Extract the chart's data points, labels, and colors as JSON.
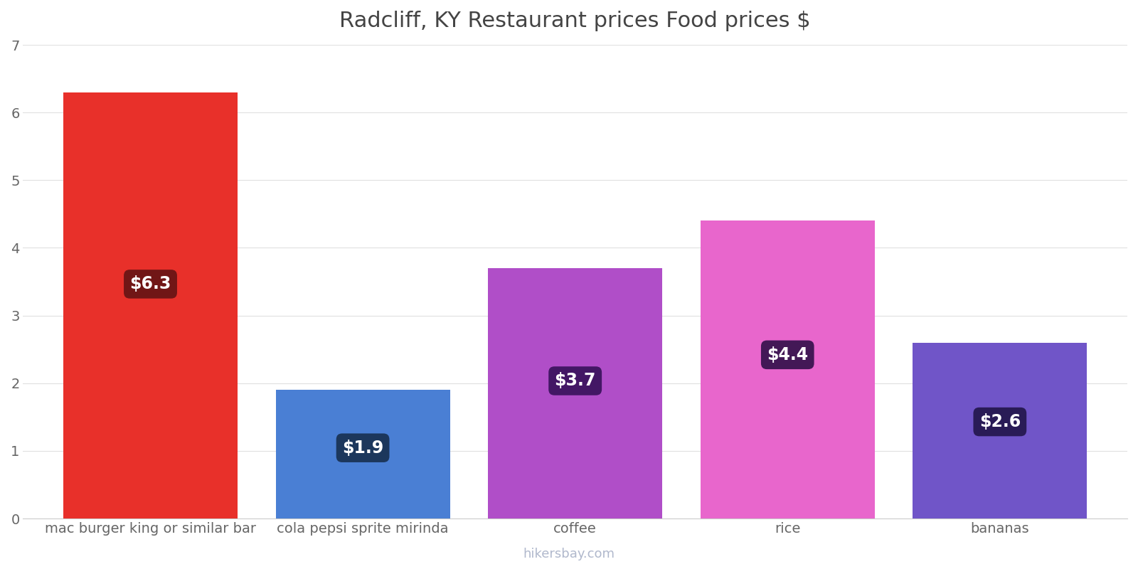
{
  "title": "Radcliff, KY Restaurant prices Food prices $",
  "categories": [
    "mac burger king or similar bar",
    "cola pepsi sprite mirinda",
    "coffee",
    "rice",
    "bananas"
  ],
  "values": [
    6.3,
    1.9,
    3.7,
    4.4,
    2.6
  ],
  "bar_colors": [
    "#e8302a",
    "#4a7fd4",
    "#b04ec8",
    "#e866cc",
    "#7055c8"
  ],
  "label_bg_colors": [
    "#6b1515",
    "#1a3356",
    "#3d1460",
    "#3a1450",
    "#251850"
  ],
  "labels": [
    "$6.3",
    "$1.9",
    "$3.7",
    "$4.4",
    "$2.6"
  ],
  "ylim": [
    0,
    7
  ],
  "yticks": [
    0,
    1,
    2,
    3,
    4,
    5,
    6,
    7
  ],
  "background_color": "#ffffff",
  "grid_color": "#e0e0e0",
  "title_fontsize": 22,
  "tick_fontsize": 14,
  "label_fontsize": 17,
  "bar_width": 0.82,
  "watermark": "hikersbay.com"
}
